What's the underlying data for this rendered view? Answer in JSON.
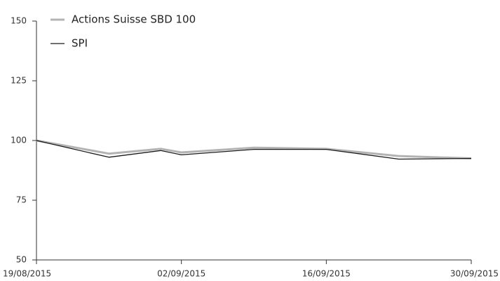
{
  "chart_data": {
    "type": "line",
    "x": [
      "2015-08-19",
      "2015-08-26",
      "2015-08-31",
      "2015-09-02",
      "2015-09-09",
      "2015-09-16",
      "2015-09-23",
      "2015-09-30"
    ],
    "series": [
      {
        "name": "Actions Suisse SBD 100",
        "color": "#b3b3b3",
        "values": [
          100,
          94.5,
          96.5,
          95,
          97,
          96.5,
          93.5,
          92.5
        ]
      },
      {
        "name": "SPI",
        "color": "#1a1a1a",
        "values": [
          100,
          93,
          95.8,
          94,
          96.3,
          96.3,
          92.2,
          92.5
        ]
      }
    ],
    "xlim": [
      "2015-08-19",
      "2015-09-30"
    ],
    "xticks": [
      {
        "value": "2015-08-19",
        "label": "19/08/2015"
      },
      {
        "value": "2015-09-02",
        "label": "02/09/2015"
      },
      {
        "value": "2015-09-16",
        "label": "16/09/2015"
      },
      {
        "value": "2015-09-30",
        "label": "30/09/2015"
      }
    ],
    "ylim": [
      50,
      150
    ],
    "yticks": [
      50,
      75,
      100,
      125,
      150
    ],
    "legend": "upper left"
  }
}
